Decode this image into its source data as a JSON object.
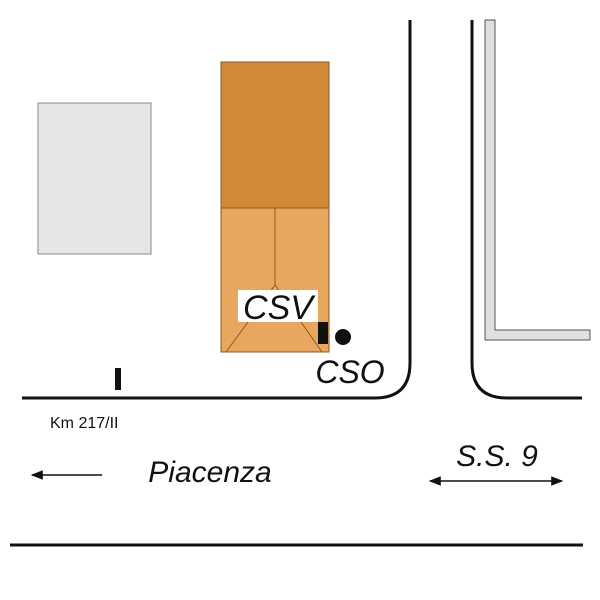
{
  "labels": {
    "csv": "CSV",
    "cso": "CSO",
    "km": "Km 217/II",
    "direction": "Piacenza",
    "road": "S.S. 9"
  }
}
